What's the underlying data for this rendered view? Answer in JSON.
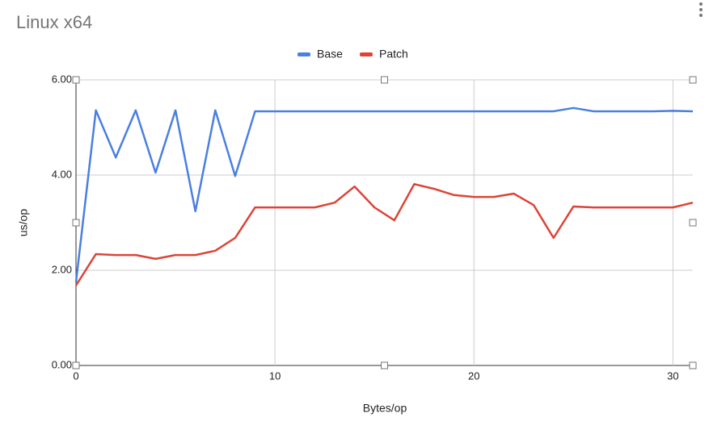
{
  "chart_data": {
    "type": "line",
    "title": "Linux x64",
    "x_label": "Bytes/op",
    "y_label": "us/op",
    "x": [
      0,
      1,
      2,
      3,
      4,
      5,
      6,
      7,
      8,
      9,
      10,
      11,
      12,
      13,
      14,
      15,
      16,
      17,
      18,
      19,
      20,
      21,
      22,
      23,
      24,
      25,
      26,
      27,
      28,
      29,
      30,
      31
    ],
    "series": [
      {
        "name": "Base",
        "color": "#4a7fe0",
        "values": [
          1.75,
          5.36,
          4.37,
          5.36,
          4.05,
          5.36,
          3.24,
          5.36,
          3.98,
          5.34,
          5.34,
          5.34,
          5.34,
          5.34,
          5.34,
          5.34,
          5.34,
          5.34,
          5.34,
          5.34,
          5.34,
          5.34,
          5.34,
          5.34,
          5.34,
          5.41,
          5.34,
          5.34,
          5.34,
          5.34,
          5.35,
          5.34
        ]
      },
      {
        "name": "Patch",
        "color": "#dc4437",
        "values": [
          1.68,
          2.34,
          2.32,
          2.32,
          2.24,
          2.32,
          2.32,
          2.41,
          2.68,
          3.32,
          3.32,
          3.32,
          3.32,
          3.42,
          3.76,
          3.32,
          3.05,
          3.81,
          3.71,
          3.58,
          3.54,
          3.54,
          3.61,
          3.37,
          2.68,
          3.34,
          3.32,
          3.32,
          3.32,
          3.32,
          3.32,
          3.42
        ]
      }
    ],
    "xlim": [
      0,
      31
    ],
    "xticks": [
      0,
      10,
      20,
      30
    ],
    "ylim": [
      0,
      6
    ],
    "yticks": [
      {
        "value": 0,
        "label": "0.00"
      },
      {
        "value": 2,
        "label": "2.00"
      },
      {
        "value": 4,
        "label": "4.00"
      },
      {
        "value": 6,
        "label": "6.00"
      }
    ],
    "grid": true,
    "legend": "top"
  }
}
